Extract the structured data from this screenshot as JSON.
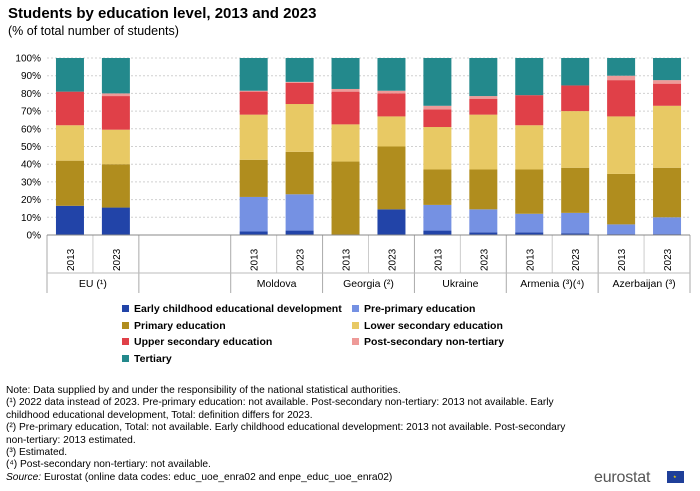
{
  "header": {
    "title": "Students by education level, 2013 and 2023",
    "subtitle": "(% of total number  of students)"
  },
  "chart_data": {
    "type": "bar",
    "stacked": true,
    "title": "Students by education level, 2013 and 2023",
    "ylabel": "% of total number of students",
    "ylim": [
      0,
      100
    ],
    "yticks": [
      "0%",
      "10%",
      "20%",
      "30%",
      "40%",
      "50%",
      "60%",
      "70%",
      "80%",
      "90%",
      "100%"
    ],
    "grid": true,
    "colors": [
      "#2244a8",
      "#7591e3",
      "#b08d1e",
      "#e8c964",
      "#e04048",
      "#ee9a98",
      "#23898c"
    ],
    "series_names": [
      "Early childhood educational development",
      "Pre-primary education",
      "Primary education",
      "Lower secondary education",
      "Upper secondary education",
      "Post-secondary non-tertiary",
      "Tertiary"
    ],
    "groups": [
      {
        "label": "EU (¹)",
        "bars": [
          {
            "year": "2013",
            "values": [
              16.5,
              0,
              25.5,
              20,
              19,
              0,
              19
            ]
          },
          {
            "year": "2023",
            "values": [
              15.5,
              0,
              24.5,
              19.5,
              19,
              1.5,
              20
            ]
          }
        ]
      },
      {
        "label": "",
        "bars": []
      },
      {
        "label": "Moldova",
        "bars": [
          {
            "year": "2013",
            "values": [
              2,
              19.5,
              21,
              25.5,
              13,
              0.5,
              18.5
            ]
          },
          {
            "year": "2023",
            "values": [
              2.5,
              20.5,
              24,
              27,
              12,
              0.5,
              13.5
            ]
          }
        ]
      },
      {
        "label": "Georgia (²)",
        "bars": [
          {
            "year": "2013",
            "values": [
              0,
              0,
              41.5,
              21,
              18.5,
              1.5,
              17.5
            ]
          },
          {
            "year": "2023",
            "values": [
              14.5,
              0,
              35.5,
              17,
              13,
              1.5,
              18.5
            ]
          }
        ]
      },
      {
        "label": "Ukraine",
        "bars": [
          {
            "year": "2013",
            "values": [
              2.5,
              14.5,
              20,
              24,
              10,
              2,
              27
            ]
          },
          {
            "year": "2023",
            "values": [
              1.5,
              13,
              22.5,
              31,
              9,
              1.5,
              21.5
            ]
          }
        ]
      },
      {
        "label": "Armenia (³)(⁴)",
        "bars": [
          {
            "year": "2013",
            "values": [
              1.5,
              10.5,
              25,
              25,
              17,
              0,
              21
            ]
          },
          {
            "year": "2023",
            "values": [
              1,
              11.5,
              25.5,
              32,
              14.5,
              0,
              15.5
            ]
          }
        ]
      },
      {
        "label": "Azerbaijan (³)",
        "bars": [
          {
            "year": "2013",
            "values": [
              0.5,
              5.5,
              28.5,
              32.5,
              20.5,
              2.5,
              10
            ]
          },
          {
            "year": "2023",
            "values": [
              0.5,
              9.5,
              28,
              35,
              12.5,
              2,
              12.5
            ]
          }
        ]
      }
    ]
  },
  "notes": [
    "Note: Data supplied by and under the responsibility of the national statistical authorities.",
    "(¹) 2022 data instead of 2023. Pre-primary education: not available. Post-secondary non-tertiary:  2013 not available. Early childhood educational development, Total: definition differs for 2023.",
    "(²) Pre-primary education, Total: not available. Early childhood educational development:  2013 not available. Post-secondary non-tertiary:  2013 estimated.",
    "(³) Estimated.",
    "(⁴) Post-secondary non-tertiary:  not available."
  ],
  "source": {
    "label": "Source:",
    "text": " Eurostat (online data codes: educ_uoe_enra02 and enpe_educ_uoe_enra02)"
  },
  "logo": "eurostat"
}
